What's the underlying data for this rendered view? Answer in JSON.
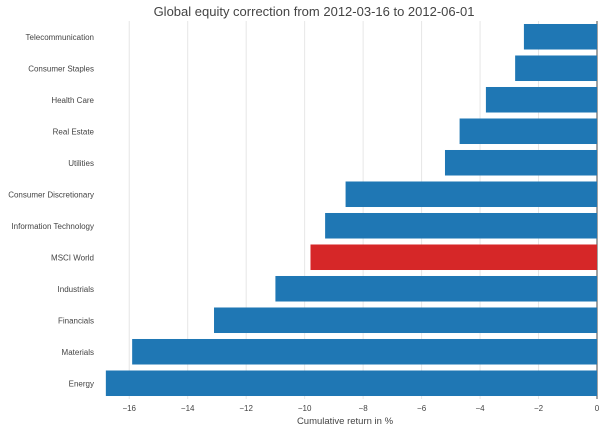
{
  "chart_data": {
    "type": "bar",
    "orientation": "horizontal",
    "title": "Global equity correction from 2012-03-16 to 2012-06-01",
    "xlabel": "Cumulative return in %",
    "ylabel": "",
    "xlim": [
      -17,
      0
    ],
    "xticks": [
      -16,
      -14,
      -12,
      -10,
      -8,
      -6,
      -4,
      -2,
      0
    ],
    "xtick_labels": [
      "−16",
      "−14",
      "−12",
      "−10",
      "−8",
      "−6",
      "−4",
      "−2",
      "0"
    ],
    "grid": true,
    "categories": [
      "Telecommunication",
      "Consumer Staples",
      "Health Care",
      "Real Estate",
      "Utilities",
      "Consumer Discretionary",
      "Information Technology",
      "MSCI World",
      "Industrials",
      "Financials",
      "Materials",
      "Energy"
    ],
    "values": [
      -2.5,
      -2.8,
      -3.8,
      -4.7,
      -5.2,
      -8.6,
      -9.3,
      -9.8,
      -11.0,
      -13.1,
      -15.9,
      -16.8
    ],
    "colors": {
      "default": "#1f77b4",
      "highlight": "#d62728"
    },
    "highlight_category": "MSCI World"
  }
}
